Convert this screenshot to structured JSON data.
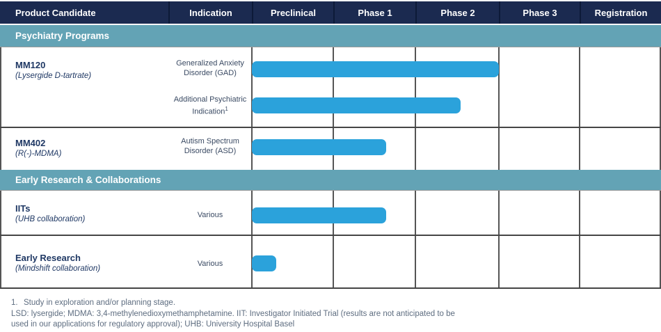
{
  "table": {
    "columns": [
      "Product Candidate",
      "Indication",
      "Preclinical",
      "Phase 1",
      "Phase 2",
      "Phase 3",
      "Registration"
    ]
  },
  "sections": [
    {
      "title": "Psychiatry Programs",
      "rows": [
        {
          "product": "MM120",
          "product_sub": "(Lysergide D-tartrate)",
          "entries": [
            {
              "indication_lines": [
                "Generalized Anxiety",
                "Disorder (GAD)"
              ],
              "progress_phases": 3.0,
              "stage_reached": "end of Phase 2"
            },
            {
              "indication_lines": [
                "Additional Psychiatric",
                "Indication"
              ],
              "sup": "1",
              "progress_phases": 2.54,
              "stage_reached": "mid Phase 2"
            }
          ]
        },
        {
          "product": "MM402",
          "product_sub": "(R(-)-MDMA)",
          "entries": [
            {
              "indication_lines": [
                "Autism Spectrum",
                "Disorder (ASD)"
              ],
              "progress_phases": 1.64,
              "stage_reached": "mid Phase 1"
            }
          ]
        }
      ]
    },
    {
      "title": "Early Research & Collaborations",
      "rows": [
        {
          "product": "IITs",
          "product_sub": "(UHB collaboration)",
          "entries": [
            {
              "indication_lines": [
                "Various"
              ],
              "progress_phases": 1.64,
              "stage_reached": "mid Phase 1"
            }
          ]
        },
        {
          "product": "Early Research",
          "product_sub": "(Mindshift collaboration)",
          "entries": [
            {
              "indication_lines": [
                "Various"
              ],
              "progress_phases": 0.3,
              "stage_reached": "early Preclinical"
            }
          ]
        }
      ]
    }
  ],
  "footnotes": {
    "marker": "1.",
    "note1": "Study in exploration and/or planning stage.",
    "line2": "LSD: lysergide; MDMA: 3,4-methylenedioxymethamphetamine. IIT: Investigator Initiated Trial (results are not anticipated to be",
    "line3": "used in our applications for regulatory approval); UHB: University Hospital Basel"
  },
  "colors": {
    "header_bg": "#1b2a50",
    "section_band_bg": "#63a3b5",
    "bar_blue": "#2ba2db",
    "product_text": "#1f3864",
    "footnote_text": "#5e6d80"
  },
  "chart_data": {
    "type": "bar",
    "orientation": "horizontal",
    "title": "Clinical pipeline by development stage",
    "x_categories": [
      "Preclinical",
      "Phase 1",
      "Phase 2",
      "Phase 3",
      "Registration"
    ],
    "xlim": [
      0,
      5
    ],
    "bar_color": "#2ba2db",
    "series": [
      {
        "section": "Psychiatry Programs",
        "product": "MM120 (Lysergide D-tartrate)",
        "indication": "Generalized Anxiety Disorder (GAD)",
        "bar_start_phase": 0,
        "bar_end_phase": 3.0
      },
      {
        "section": "Psychiatry Programs",
        "product": "MM120 (Lysergide D-tartrate)",
        "indication": "Additional Psychiatric Indication¹",
        "bar_start_phase": 0,
        "bar_end_phase": 2.54
      },
      {
        "section": "Psychiatry Programs",
        "product": "MM402 (R(-)-MDMA)",
        "indication": "Autism Spectrum Disorder (ASD)",
        "bar_start_phase": 0,
        "bar_end_phase": 1.64
      },
      {
        "section": "Early Research & Collaborations",
        "product": "IITs (UHB collaboration)",
        "indication": "Various",
        "bar_start_phase": 0,
        "bar_end_phase": 1.64
      },
      {
        "section": "Early Research & Collaborations",
        "product": "Early Research (Mindshift collaboration)",
        "indication": "Various",
        "bar_start_phase": 0,
        "bar_end_phase": 0.3
      }
    ]
  }
}
